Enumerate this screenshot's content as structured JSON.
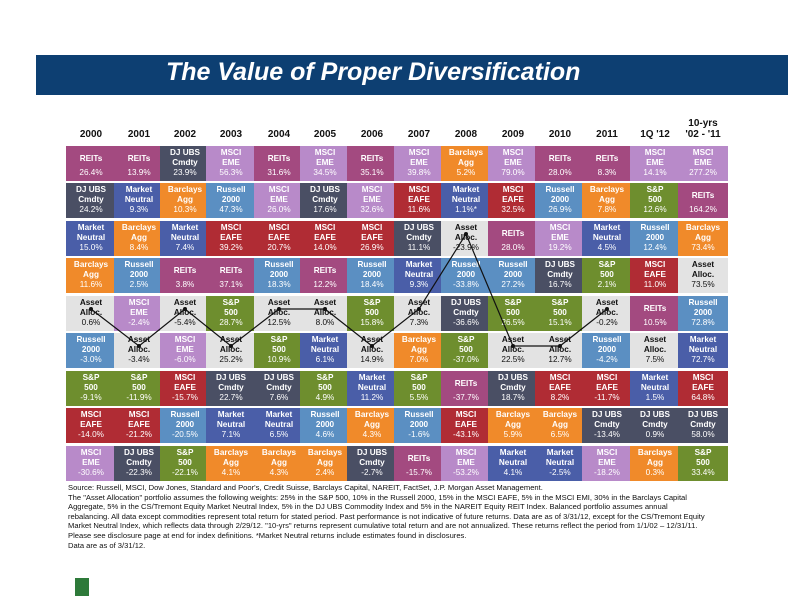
{
  "title": "The Value of Proper Diversification",
  "chart_data": {
    "type": "table",
    "columns": [
      "2000",
      "2001",
      "2002",
      "2003",
      "2004",
      "2005",
      "2006",
      "2007",
      "2008",
      "2009",
      "2010",
      "2011",
      "1Q '12",
      "10-yrs '02 - '11"
    ],
    "ranks": [
      [
        {
          "label": "REITs",
          "value": "26.4%",
          "c": "#a34a80"
        },
        {
          "label": "REITs",
          "value": "13.9%",
          "c": "#a34a80"
        },
        {
          "label": "DJ UBS Cmdty",
          "value": "23.9%",
          "c": "#4a4f64"
        },
        {
          "label": "MSCI EME",
          "value": "56.3%",
          "c": "#b88ac9"
        },
        {
          "label": "REITs",
          "value": "31.6%",
          "c": "#a34a80"
        },
        {
          "label": "MSCI EME",
          "value": "34.5%",
          "c": "#b88ac9"
        },
        {
          "label": "REITs",
          "value": "35.1%",
          "c": "#a34a80"
        },
        {
          "label": "MSCI EME",
          "value": "39.8%",
          "c": "#b88ac9"
        },
        {
          "label": "Barclays Agg",
          "value": "5.2%",
          "c": "#f08a2a"
        },
        {
          "label": "MSCI EME",
          "value": "79.0%",
          "c": "#b88ac9"
        },
        {
          "label": "REITs",
          "value": "28.0%",
          "c": "#a34a80"
        },
        {
          "label": "REITs",
          "value": "8.3%",
          "c": "#a34a80"
        },
        {
          "label": "MSCI EME",
          "value": "14.1%",
          "c": "#b88ac9"
        },
        {
          "label": "MSCI EME",
          "value": "277.2%",
          "c": "#b88ac9"
        }
      ],
      [
        {
          "label": "DJ UBS Cmdty",
          "value": "24.2%",
          "c": "#4a4f64"
        },
        {
          "label": "Market Neutral",
          "value": "9.3%",
          "c": "#4a5ea8"
        },
        {
          "label": "Barclays Agg",
          "value": "10.3%",
          "c": "#f08a2a"
        },
        {
          "label": "Russell 2000",
          "value": "47.3%",
          "c": "#5b8fc2"
        },
        {
          "label": "MSCI EME",
          "value": "26.0%",
          "c": "#b88ac9"
        },
        {
          "label": "DJ UBS Cmdty",
          "value": "17.6%",
          "c": "#4a4f64"
        },
        {
          "label": "MSCI EME",
          "value": "32.6%",
          "c": "#b88ac9"
        },
        {
          "label": "MSCI EAFE",
          "value": "11.6%",
          "c": "#b02c34"
        },
        {
          "label": "Market Neutral",
          "value": "1.1%*",
          "c": "#4a5ea8"
        },
        {
          "label": "MSCI EAFE",
          "value": "32.5%",
          "c": "#b02c34"
        },
        {
          "label": "Russell 2000",
          "value": "26.9%",
          "c": "#5b8fc2"
        },
        {
          "label": "Barclays Agg",
          "value": "7.8%",
          "c": "#f08a2a"
        },
        {
          "label": "S&P 500",
          "value": "12.6%",
          "c": "#6e8e2e"
        },
        {
          "label": "REITs",
          "value": "164.2%",
          "c": "#a34a80"
        }
      ],
      [
        {
          "label": "Market Neutral",
          "value": "15.0%",
          "c": "#4a5ea8"
        },
        {
          "label": "Barclays Agg",
          "value": "8.4%",
          "c": "#f08a2a"
        },
        {
          "label": "Market Neutral",
          "value": "7.4%",
          "c": "#4a5ea8"
        },
        {
          "label": "MSCI EAFE",
          "value": "39.2%",
          "c": "#b02c34"
        },
        {
          "label": "MSCI EAFE",
          "value": "20.7%",
          "c": "#b02c34"
        },
        {
          "label": "MSCI EAFE",
          "value": "14.0%",
          "c": "#b02c34"
        },
        {
          "label": "MSCI EAFE",
          "value": "26.9%",
          "c": "#b02c34"
        },
        {
          "label": "DJ UBS Cmdty",
          "value": "11.1%",
          "c": "#4a4f64"
        },
        {
          "label": "Asset Alloc.",
          "value": "-23.9%",
          "c": "#e3e3e3",
          "t": "#111"
        },
        {
          "label": "REITs",
          "value": "28.0%",
          "c": "#a34a80"
        },
        {
          "label": "MSCI EME",
          "value": "19.2%",
          "c": "#b88ac9"
        },
        {
          "label": "Market Neutral",
          "value": "4.5%",
          "c": "#4a5ea8"
        },
        {
          "label": "Russell 2000",
          "value": "12.4%",
          "c": "#5b8fc2"
        },
        {
          "label": "Barclays Agg",
          "value": "73.4%",
          "c": "#f08a2a"
        }
      ],
      [
        {
          "label": "Barclays Agg",
          "value": "11.6%",
          "c": "#f08a2a"
        },
        {
          "label": "Russell 2000",
          "value": "2.5%",
          "c": "#5b8fc2"
        },
        {
          "label": "REITs",
          "value": "3.8%",
          "c": "#a34a80"
        },
        {
          "label": "REITs",
          "value": "37.1%",
          "c": "#a34a80"
        },
        {
          "label": "Russell 2000",
          "value": "18.3%",
          "c": "#5b8fc2"
        },
        {
          "label": "REITs",
          "value": "12.2%",
          "c": "#a34a80"
        },
        {
          "label": "Russell 2000",
          "value": "18.4%",
          "c": "#5b8fc2"
        },
        {
          "label": "Market Neutral",
          "value": "9.3%",
          "c": "#4a5ea8"
        },
        {
          "label": "Russell 2000",
          "value": "-33.8%",
          "c": "#5b8fc2"
        },
        {
          "label": "Russell 2000",
          "value": "27.2%",
          "c": "#5b8fc2"
        },
        {
          "label": "DJ UBS Cmdty",
          "value": "16.7%",
          "c": "#4a4f64"
        },
        {
          "label": "S&P 500",
          "value": "2.1%",
          "c": "#6e8e2e"
        },
        {
          "label": "MSCI EAFE",
          "value": "11.0%",
          "c": "#b02c34"
        },
        {
          "label": "Asset Alloc.",
          "value": "73.5%",
          "c": "#e3e3e3",
          "t": "#111"
        }
      ],
      [
        {
          "label": "Asset Alloc.",
          "value": "0.6%",
          "c": "#e3e3e3",
          "t": "#111"
        },
        {
          "label": "MSCI EME",
          "value": "-2.4%",
          "c": "#b88ac9"
        },
        {
          "label": "Asset Alloc.",
          "value": "-5.4%",
          "c": "#e3e3e3",
          "t": "#111"
        },
        {
          "label": "S&P 500",
          "value": "28.7%",
          "c": "#6e8e2e"
        },
        {
          "label": "Asset Alloc.",
          "value": "12.5%",
          "c": "#e3e3e3",
          "t": "#111"
        },
        {
          "label": "Asset Alloc.",
          "value": "8.0%",
          "c": "#e3e3e3",
          "t": "#111"
        },
        {
          "label": "S&P 500",
          "value": "15.8%",
          "c": "#6e8e2e"
        },
        {
          "label": "Asset Alloc.",
          "value": "7.3%",
          "c": "#e3e3e3",
          "t": "#111"
        },
        {
          "label": "DJ UBS Cmdty",
          "value": "-36.6%",
          "c": "#4a4f64"
        },
        {
          "label": "S&P 500",
          "value": "26.5%",
          "c": "#6e8e2e"
        },
        {
          "label": "S&P 500",
          "value": "15.1%",
          "c": "#6e8e2e"
        },
        {
          "label": "Asset Alloc.",
          "value": "-0.2%",
          "c": "#e3e3e3",
          "t": "#111"
        },
        {
          "label": "REITs",
          "value": "10.5%",
          "c": "#a34a80"
        },
        {
          "label": "Russell 2000",
          "value": "72.8%",
          "c": "#5b8fc2"
        }
      ],
      [
        {
          "label": "Russell 2000",
          "value": "-3.0%",
          "c": "#5b8fc2"
        },
        {
          "label": "Asset Alloc.",
          "value": "-3.4%",
          "c": "#e3e3e3",
          "t": "#111"
        },
        {
          "label": "MSCI EME",
          "value": "-6.0%",
          "c": "#b88ac9"
        },
        {
          "label": "Asset Alloc.",
          "value": "25.2%",
          "c": "#e3e3e3",
          "t": "#111"
        },
        {
          "label": "S&P 500",
          "value": "10.9%",
          "c": "#6e8e2e"
        },
        {
          "label": "Market Neutral",
          "value": "6.1%",
          "c": "#4a5ea8"
        },
        {
          "label": "Asset Alloc.",
          "value": "14.9%",
          "c": "#e3e3e3",
          "t": "#111"
        },
        {
          "label": "Barclays Agg",
          "value": "7.0%",
          "c": "#f08a2a"
        },
        {
          "label": "S&P 500",
          "value": "-37.0%",
          "c": "#6e8e2e"
        },
        {
          "label": "Asset Alloc.",
          "value": "22.5%",
          "c": "#e3e3e3",
          "t": "#111"
        },
        {
          "label": "Asset Alloc.",
          "value": "12.7%",
          "c": "#e3e3e3",
          "t": "#111"
        },
        {
          "label": "Russell 2000",
          "value": "-4.2%",
          "c": "#5b8fc2"
        },
        {
          "label": "Asset Alloc.",
          "value": "7.5%",
          "c": "#e3e3e3",
          "t": "#111"
        },
        {
          "label": "Market Neutral",
          "value": "72.7%",
          "c": "#4a5ea8"
        }
      ],
      [
        {
          "label": "S&P 500",
          "value": "-9.1%",
          "c": "#6e8e2e"
        },
        {
          "label": "S&P 500",
          "value": "-11.9%",
          "c": "#6e8e2e"
        },
        {
          "label": "MSCI EAFE",
          "value": "-15.7%",
          "c": "#b02c34"
        },
        {
          "label": "DJ UBS Cmdty",
          "value": "22.7%",
          "c": "#4a4f64"
        },
        {
          "label": "DJ UBS Cmdty",
          "value": "7.6%",
          "c": "#4a4f64"
        },
        {
          "label": "S&P 500",
          "value": "4.9%",
          "c": "#6e8e2e"
        },
        {
          "label": "Market Neutral",
          "value": "11.2%",
          "c": "#4a5ea8"
        },
        {
          "label": "S&P 500",
          "value": "5.5%",
          "c": "#6e8e2e"
        },
        {
          "label": "REITs",
          "value": "-37.7%",
          "c": "#a34a80"
        },
        {
          "label": "DJ UBS Cmdty",
          "value": "18.7%",
          "c": "#4a4f64"
        },
        {
          "label": "MSCI EAFE",
          "value": "8.2%",
          "c": "#b02c34"
        },
        {
          "label": "MSCI EAFE",
          "value": "-11.7%",
          "c": "#b02c34"
        },
        {
          "label": "Market Neutral",
          "value": "1.5%",
          "c": "#4a5ea8"
        },
        {
          "label": "MSCI EAFE",
          "value": "64.8%",
          "c": "#b02c34"
        }
      ],
      [
        {
          "label": "MSCI EAFE",
          "value": "-14.0%",
          "c": "#b02c34"
        },
        {
          "label": "MSCI EAFE",
          "value": "-21.2%",
          "c": "#b02c34"
        },
        {
          "label": "Russell 2000",
          "value": "-20.5%",
          "c": "#5b8fc2"
        },
        {
          "label": "Market Neutral",
          "value": "7.1%",
          "c": "#4a5ea8"
        },
        {
          "label": "Market Neutral",
          "value": "6.5%",
          "c": "#4a5ea8"
        },
        {
          "label": "Russell 2000",
          "value": "4.6%",
          "c": "#5b8fc2"
        },
        {
          "label": "Barclays Agg",
          "value": "4.3%",
          "c": "#f08a2a"
        },
        {
          "label": "Russell 2000",
          "value": "-1.6%",
          "c": "#5b8fc2"
        },
        {
          "label": "MSCI EAFE",
          "value": "-43.1%",
          "c": "#b02c34"
        },
        {
          "label": "Barclays Agg",
          "value": "5.9%",
          "c": "#f08a2a"
        },
        {
          "label": "Barclays Agg",
          "value": "6.5%",
          "c": "#f08a2a"
        },
        {
          "label": "DJ UBS Cmdty",
          "value": "-13.4%",
          "c": "#4a4f64"
        },
        {
          "label": "DJ UBS Cmdty",
          "value": "0.9%",
          "c": "#4a4f64"
        },
        {
          "label": "DJ UBS Cmdty",
          "value": "58.0%",
          "c": "#4a4f64"
        }
      ],
      [
        {
          "label": "MSCI EME",
          "value": "-30.6%",
          "c": "#b88ac9"
        },
        {
          "label": "DJ UBS Cmdty",
          "value": "-22.3%",
          "c": "#4a4f64"
        },
        {
          "label": "S&P 500",
          "value": "-22.1%",
          "c": "#6e8e2e"
        },
        {
          "label": "Barclays Agg",
          "value": "4.1%",
          "c": "#f08a2a"
        },
        {
          "label": "Barclays Agg",
          "value": "4.3%",
          "c": "#f08a2a"
        },
        {
          "label": "Barclays Agg",
          "value": "2.4%",
          "c": "#f08a2a"
        },
        {
          "label": "DJ UBS Cmdty",
          "value": "-2.7%",
          "c": "#4a4f64"
        },
        {
          "label": "REITs",
          "value": "-15.7%",
          "c": "#a34a80"
        },
        {
          "label": "MSCI EME",
          "value": "-53.2%",
          "c": "#b88ac9"
        },
        {
          "label": "Market Neutral",
          "value": "4.1%",
          "c": "#4a5ea8"
        },
        {
          "label": "Market Neutral",
          "value": "-2.5%",
          "c": "#4a5ea8"
        },
        {
          "label": "MSCI EME",
          "value": "-18.2%",
          "c": "#b88ac9"
        },
        {
          "label": "Barclays Agg",
          "value": "0.3%",
          "c": "#f08a2a"
        },
        {
          "label": "S&P 500",
          "value": "33.4%",
          "c": "#6e8e2e"
        }
      ]
    ],
    "asset_alloc_path_ranks": [
      5,
      6,
      5,
      6,
      5,
      5,
      6,
      5,
      3,
      6,
      6,
      5
    ]
  },
  "footer": [
    "Source: Russell, MSCI, Dow Jones, Standard and Poor's, Credit Suisse, Barclays Capital, NAREIT, FactSet, J.P. Morgan Asset Management.",
    "The \"Asset Allocation\" portfolio assumes the following weights: 25% in the S&P 500, 10% in the Russell 2000, 15% in the MSCI EAFE, 5% in the MSCI EMI, 30% in the Barclays Capital Aggregate, 5% in the CS/Tremont Equity Market Neutral Index, 5% in the DJ UBS Commodity Index and 5% in the NAREIT Equity REIT Index. Balanced portfolio assumes annual rebalancing. All data except commodities represent total return for stated period. Past performance is not indicative of future returns. Data are as of 3/31/12, except for the CS/Tremont Equity Market Neutral Index, which reflects data through 2/29/12. \"10-yrs\" returns represent cumulative total return and are not annualized. These returns reflect the period from 1/1/02 – 12/31/11.",
    "Please see disclosure page at end for index definitions. *Market Neutral returns include estimates found in disclosures.",
    "Data are as of 3/31/12."
  ]
}
